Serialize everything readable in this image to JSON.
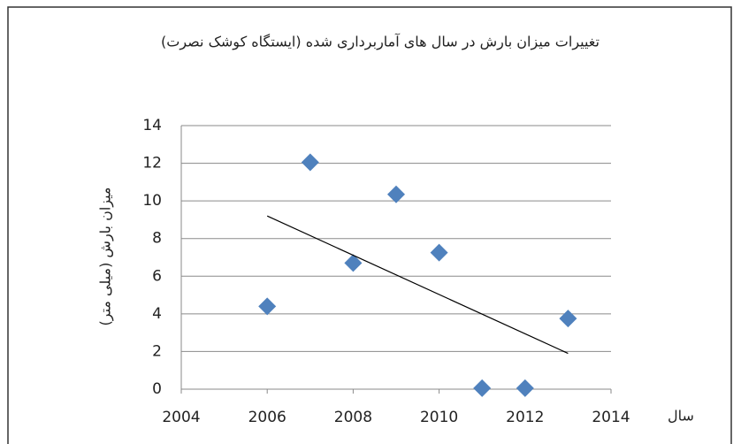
{
  "chart_data": {
    "type": "scatter",
    "title": "تغییرات میزان بارش در سال های آماربرداری شده (ایستگاه کوشک نصرت)",
    "y_label": "میزان بارش (میلی متر)",
    "x_label": "سال",
    "series": [
      {
        "color": "#4f81bd",
        "x": [
          2006,
          2007,
          2008,
          2009,
          2010,
          2011,
          2012,
          2013
        ],
        "values": [
          4.4,
          12.05,
          6.7,
          10.35,
          7.25,
          0.05,
          0.05,
          3.75
        ]
      }
    ],
    "trendline": {
      "color": "#000000",
      "x": [
        2006,
        2013
      ],
      "y": [
        9.2,
        1.9
      ]
    },
    "xlim": [
      2004,
      2014
    ],
    "xticks": [
      2004,
      2006,
      2008,
      2010,
      2012,
      2014
    ],
    "ylim": [
      0,
      14
    ],
    "yticks": [
      0,
      2,
      4,
      6,
      8,
      10,
      12,
      14
    ],
    "grid": true
  }
}
